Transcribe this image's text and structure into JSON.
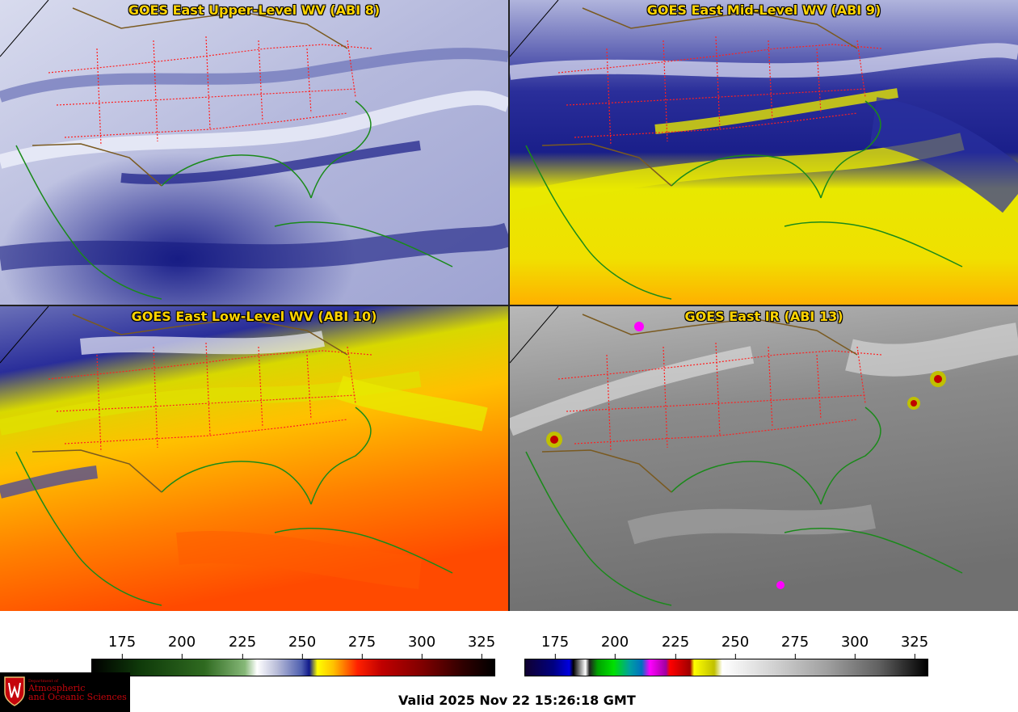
{
  "panels": [
    {
      "title": "GOES East Upper-Level WV (ABI 8)"
    },
    {
      "title": "GOES East Mid-Level WV (ABI 9)"
    },
    {
      "title": "GOES East Low-Level WV (ABI 10)"
    },
    {
      "title": "GOES East IR (ABI 13)"
    }
  ],
  "colorbar_wv": {
    "ticks": [
      "175",
      "200",
      "225",
      "250",
      "275",
      "300",
      "325"
    ]
  },
  "colorbar_ir": {
    "ticks": [
      "175",
      "200",
      "225",
      "250",
      "275",
      "300",
      "325"
    ]
  },
  "valid_time": "Valid 2025 Nov 22 15:26:18 GMT",
  "logo": {
    "line1": "Department of",
    "line2": "Atmospheric",
    "line3": "and Oceanic Sciences"
  },
  "colors": {
    "title": "#ffd400",
    "state_borders": "#ff2020",
    "coastlines": "#1a8a1a",
    "country_borders": "#7a5a20"
  }
}
